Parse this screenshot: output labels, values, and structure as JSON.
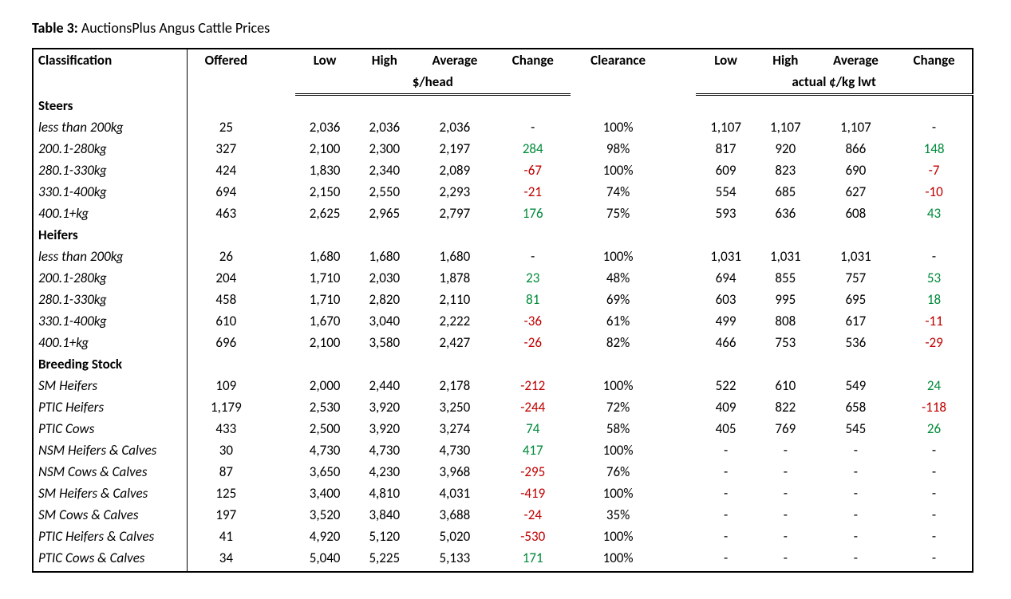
{
  "title_bold": "Table 3:",
  "title_rest": " AuctionsPlus Angus Cattle Prices",
  "headers": {
    "classification": "Classification",
    "offered": "Offered",
    "low": "Low",
    "high": "High",
    "average": "Average",
    "change": "Change",
    "clearance": "Clearance",
    "unit_head": "$/head",
    "unit_kg": "actual ¢/kg lwt"
  },
  "sections": [
    {
      "name": "Steers",
      "rows": [
        {
          "label": "less than 200kg",
          "offered": "25",
          "h_low": "2,036",
          "h_high": "2,036",
          "h_avg": "2,036",
          "h_chg": "-",
          "h_chg_c": "",
          "clr": "100%",
          "k_low": "1,107",
          "k_high": "1,107",
          "k_avg": "1,107",
          "k_chg": "-",
          "k_chg_c": ""
        },
        {
          "label": "200.1-280kg",
          "offered": "327",
          "h_low": "2,100",
          "h_high": "2,300",
          "h_avg": "2,197",
          "h_chg": "284",
          "h_chg_c": "pos",
          "clr": "98%",
          "k_low": "817",
          "k_high": "920",
          "k_avg": "866",
          "k_chg": "148",
          "k_chg_c": "pos"
        },
        {
          "label": "280.1-330kg",
          "offered": "424",
          "h_low": "1,830",
          "h_high": "2,340",
          "h_avg": "2,089",
          "h_chg": "-67",
          "h_chg_c": "neg",
          "clr": "100%",
          "k_low": "609",
          "k_high": "823",
          "k_avg": "690",
          "k_chg": "-7",
          "k_chg_c": "neg"
        },
        {
          "label": "330.1-400kg",
          "offered": "694",
          "h_low": "2,150",
          "h_high": "2,550",
          "h_avg": "2,293",
          "h_chg": "-21",
          "h_chg_c": "neg",
          "clr": "74%",
          "k_low": "554",
          "k_high": "685",
          "k_avg": "627",
          "k_chg": "-10",
          "k_chg_c": "neg"
        },
        {
          "label": "400.1+kg",
          "offered": "463",
          "h_low": "2,625",
          "h_high": "2,965",
          "h_avg": "2,797",
          "h_chg": "176",
          "h_chg_c": "pos",
          "clr": "75%",
          "k_low": "593",
          "k_high": "636",
          "k_avg": "608",
          "k_chg": "43",
          "k_chg_c": "pos"
        }
      ]
    },
    {
      "name": "Heifers",
      "rows": [
        {
          "label": "less than 200kg",
          "offered": "26",
          "h_low": "1,680",
          "h_high": "1,680",
          "h_avg": "1,680",
          "h_chg": "-",
          "h_chg_c": "",
          "clr": "100%",
          "k_low": "1,031",
          "k_high": "1,031",
          "k_avg": "1,031",
          "k_chg": "-",
          "k_chg_c": ""
        },
        {
          "label": "200.1-280kg",
          "offered": "204",
          "h_low": "1,710",
          "h_high": "2,030",
          "h_avg": "1,878",
          "h_chg": "23",
          "h_chg_c": "pos",
          "clr": "48%",
          "k_low": "694",
          "k_high": "855",
          "k_avg": "757",
          "k_chg": "53",
          "k_chg_c": "pos"
        },
        {
          "label": "280.1-330kg",
          "offered": "458",
          "h_low": "1,710",
          "h_high": "2,820",
          "h_avg": "2,110",
          "h_chg": "81",
          "h_chg_c": "pos",
          "clr": "69%",
          "k_low": "603",
          "k_high": "995",
          "k_avg": "695",
          "k_chg": "18",
          "k_chg_c": "pos"
        },
        {
          "label": "330.1-400kg",
          "offered": "610",
          "h_low": "1,670",
          "h_high": "3,040",
          "h_avg": "2,222",
          "h_chg": "-36",
          "h_chg_c": "neg",
          "clr": "61%",
          "k_low": "499",
          "k_high": "808",
          "k_avg": "617",
          "k_chg": "-11",
          "k_chg_c": "neg"
        },
        {
          "label": "400.1+kg",
          "offered": "696",
          "h_low": "2,100",
          "h_high": "3,580",
          "h_avg": "2,427",
          "h_chg": "-26",
          "h_chg_c": "neg",
          "clr": "82%",
          "k_low": "466",
          "k_high": "753",
          "k_avg": "536",
          "k_chg": "-29",
          "k_chg_c": "neg"
        }
      ]
    },
    {
      "name": "Breeding Stock",
      "rows": [
        {
          "label": "SM Heifers",
          "offered": "109",
          "h_low": "2,000",
          "h_high": "2,440",
          "h_avg": "2,178",
          "h_chg": "-212",
          "h_chg_c": "neg",
          "clr": "100%",
          "k_low": "522",
          "k_high": "610",
          "k_avg": "549",
          "k_chg": "24",
          "k_chg_c": "pos"
        },
        {
          "label": "PTIC Heifers",
          "offered": "1,179",
          "h_low": "2,530",
          "h_high": "3,920",
          "h_avg": "3,250",
          "h_chg": "-244",
          "h_chg_c": "neg",
          "clr": "72%",
          "k_low": "409",
          "k_high": "822",
          "k_avg": "658",
          "k_chg": "-118",
          "k_chg_c": "neg"
        },
        {
          "label": "PTIC Cows",
          "offered": "433",
          "h_low": "2,500",
          "h_high": "3,920",
          "h_avg": "3,274",
          "h_chg": "74",
          "h_chg_c": "pos",
          "clr": "58%",
          "k_low": "405",
          "k_high": "769",
          "k_avg": "545",
          "k_chg": "26",
          "k_chg_c": "pos"
        },
        {
          "label": "NSM Heifers & Calves",
          "offered": "30",
          "h_low": "4,730",
          "h_high": "4,730",
          "h_avg": "4,730",
          "h_chg": "417",
          "h_chg_c": "pos",
          "clr": "100%",
          "k_low": "-",
          "k_high": "-",
          "k_avg": "-",
          "k_chg": "-",
          "k_chg_c": ""
        },
        {
          "label": "NSM Cows & Calves",
          "offered": "87",
          "h_low": "3,650",
          "h_high": "4,230",
          "h_avg": "3,968",
          "h_chg": "-295",
          "h_chg_c": "neg",
          "clr": "76%",
          "k_low": "-",
          "k_high": "-",
          "k_avg": "-",
          "k_chg": "-",
          "k_chg_c": ""
        },
        {
          "label": "SM Heifers & Calves",
          "offered": "125",
          "h_low": "3,400",
          "h_high": "4,810",
          "h_avg": "4,031",
          "h_chg": "-419",
          "h_chg_c": "neg",
          "clr": "100%",
          "k_low": "-",
          "k_high": "-",
          "k_avg": "-",
          "k_chg": "-",
          "k_chg_c": ""
        },
        {
          "label": "SM Cows & Calves",
          "offered": "197",
          "h_low": "3,520",
          "h_high": "3,840",
          "h_avg": "3,688",
          "h_chg": "-24",
          "h_chg_c": "neg",
          "clr": "35%",
          "k_low": "-",
          "k_high": "-",
          "k_avg": "-",
          "k_chg": "-",
          "k_chg_c": ""
        },
        {
          "label": "PTIC Heifers & Calves",
          "offered": "41",
          "h_low": "4,920",
          "h_high": "5,120",
          "h_avg": "5,020",
          "h_chg": "-530",
          "h_chg_c": "neg",
          "clr": "100%",
          "k_low": "-",
          "k_high": "-",
          "k_avg": "-",
          "k_chg": "-",
          "k_chg_c": ""
        },
        {
          "label": "PTIC Cows & Calves",
          "offered": "34",
          "h_low": "5,040",
          "h_high": "5,225",
          "h_avg": "5,133",
          "h_chg": "171",
          "h_chg_c": "pos",
          "clr": "100%",
          "k_low": "-",
          "k_high": "-",
          "k_avg": "-",
          "k_chg": "-",
          "k_chg_c": ""
        }
      ]
    }
  ]
}
